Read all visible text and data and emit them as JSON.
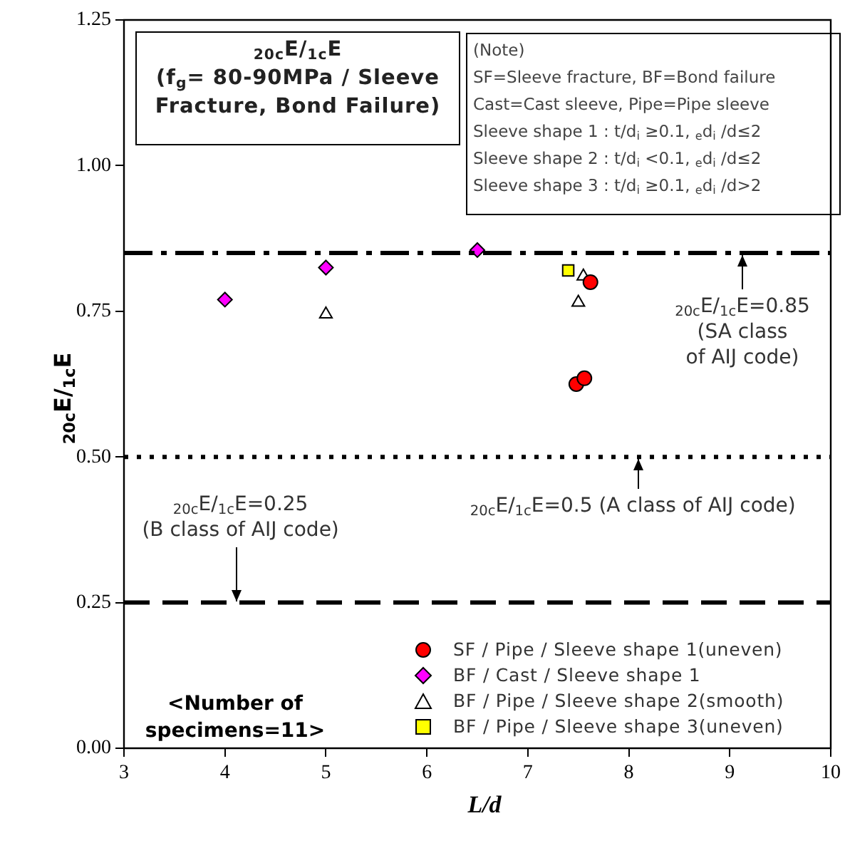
{
  "chart_data": {
    "type": "scatter",
    "title": "$_{20c}$E/$_{1c}$E\n(f$_{g}$= 80-90MPa / Sleeve\nFracture, Bond Failure)",
    "xlabel": "L/d",
    "ylabel": "$_{20c}$E/$_{1c}$E",
    "xlim": [
      3,
      10
    ],
    "xticks": [
      3,
      4,
      5,
      6,
      7,
      8,
      9,
      10
    ],
    "ylim": [
      0,
      1.25
    ],
    "yticks": [
      {
        "value": 0,
        "label": "0.00"
      },
      {
        "value": 0.25,
        "label": "0.25"
      },
      {
        "value": 0.5,
        "label": "0.50"
      },
      {
        "value": 0.75,
        "label": "0.75"
      },
      {
        "value": 1,
        "label": "1.00"
      },
      {
        "value": 1.25,
        "label": "1.25"
      }
    ],
    "grid": false,
    "legend": "bottom right",
    "series": [
      {
        "name": "SF / Pipe / Sleeve shape 1(uneven)",
        "color": "#ff0000",
        "marker": "circle",
        "x": [
          7.62,
          7.48,
          7.56
        ],
        "values": [
          0.8,
          0.625,
          0.635
        ]
      },
      {
        "name": "BF / Cast / Sleeve shape 1",
        "color": "#ff00ff",
        "marker": "diamond",
        "x": [
          4.0,
          5.0,
          6.5
        ],
        "values": [
          0.77,
          0.825,
          0.855
        ]
      },
      {
        "name": "BF / Pipe / Sleeve shape 2(smooth)",
        "color": "#ffffff",
        "marker": "triangle",
        "x": [
          5.0,
          7.5,
          7.55
        ],
        "values": [
          0.745,
          0.765,
          0.81
        ]
      },
      {
        "name": "BF / Pipe / Sleeve shape 3(uneven)",
        "color": "#ffff00",
        "marker": "square",
        "x": [
          7.4
        ],
        "values": [
          0.82
        ]
      }
    ],
    "ref_lines": [
      {
        "axis": "y",
        "value": 0.85,
        "label": "$_{20c}$E/$_{1c}$E=0.85\n(SA class\nof AIJ code)",
        "color": "#000000",
        "line_style": "dashdot"
      },
      {
        "axis": "y",
        "value": 0.5,
        "label": "$_{20c}$E/$_{1c}$E=0.5 (A class of AIJ code)",
        "color": "#000000",
        "line_style": "dotted"
      },
      {
        "axis": "y",
        "value": 0.25,
        "label": "$_{20c}$E/$_{1c}$E=0.25\n(B class of AIJ code)",
        "color": "#000000",
        "line_style": "dashed"
      }
    ],
    "annotations": [
      "(Note)\nSF=Sleeve fracture, BF=Bond failure\nCast=Cast sleeve, Pipe=Pipe sleeve\nSleeve shape 1 : t/d$_{i}$ ≥0.1, $_{e}$d$_{i}$ /d≤2\nSleeve shape 2 : t/d$_{i}$ <0.1, $_{e}$d$_{i}$ /d≤2\nSleeve shape 3 : t/d$_{i}$ ≥0.1, $_{e}$d$_{i}$ /d>2",
      "<Number of\nspecimens=11>"
    ]
  }
}
